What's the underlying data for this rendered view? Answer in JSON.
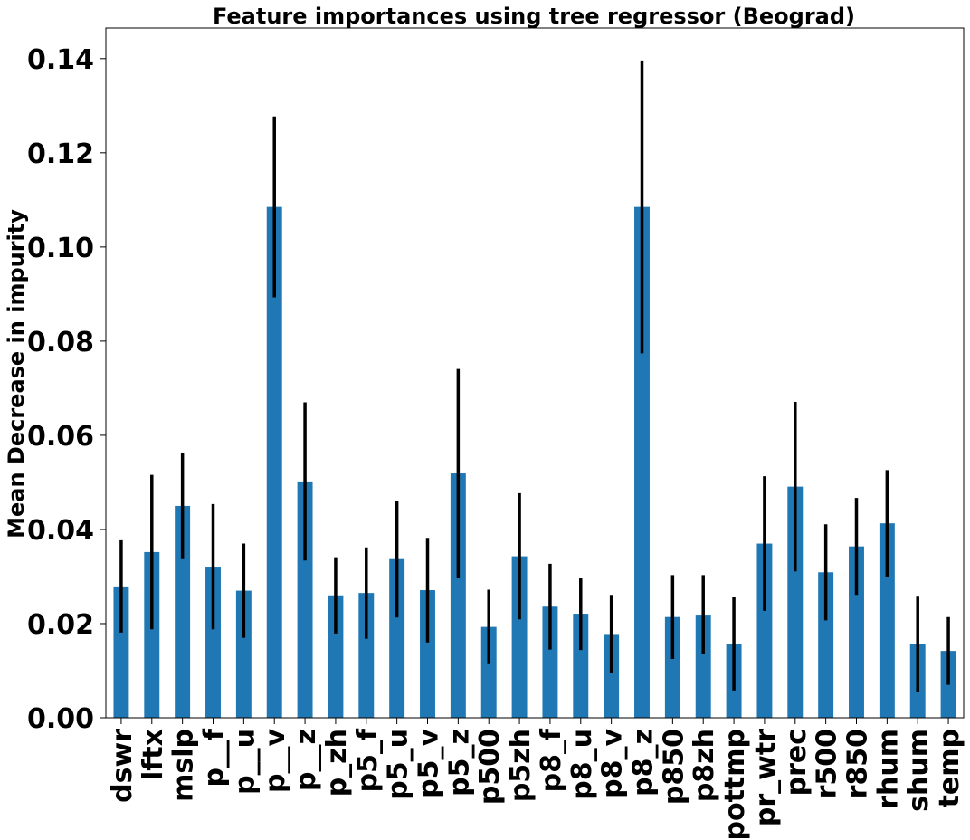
{
  "chart_data": {
    "type": "bar",
    "title": "Feature importances using tree regressor (Beograd)",
    "xlabel": "",
    "ylabel": "Mean Decrease in impurity",
    "ylim": [
      0,
      0.1465
    ],
    "yticks": [
      "0.00",
      "0.02",
      "0.04",
      "0.06",
      "0.08",
      "0.10",
      "0.12",
      "0.14"
    ],
    "grid": false,
    "bar_color": "#1f77b4",
    "error_color": "#000000",
    "categories": [
      "dswr",
      "lftx",
      "mslp",
      "p__f",
      "p__u",
      "p__v",
      "p__z",
      "p_zh",
      "p5_f",
      "p5_u",
      "p5_v",
      "p5_z",
      "p500",
      "p5zh",
      "p8_f",
      "p8_u",
      "p8_v",
      "p8_z",
      "p850",
      "p8zh",
      "pottmp",
      "pr_wtr",
      "prec",
      "r500",
      "r850",
      "rhum",
      "shum",
      "temp"
    ],
    "values": [
      0.0279,
      0.0352,
      0.045,
      0.0321,
      0.027,
      0.1085,
      0.0502,
      0.026,
      0.0265,
      0.0337,
      0.0271,
      0.0519,
      0.0193,
      0.0343,
      0.0236,
      0.0221,
      0.0178,
      0.1085,
      0.0214,
      0.0219,
      0.0157,
      0.037,
      0.0491,
      0.0309,
      0.0364,
      0.0413,
      0.0157,
      0.0142
    ],
    "errors": [
      0.0098,
      0.0164,
      0.0113,
      0.0133,
      0.01,
      0.0192,
      0.0168,
      0.0081,
      0.0097,
      0.0124,
      0.0111,
      0.0222,
      0.0079,
      0.0134,
      0.0091,
      0.0077,
      0.0083,
      0.0311,
      0.0089,
      0.0084,
      0.0099,
      0.0143,
      0.018,
      0.0102,
      0.0103,
      0.0113,
      0.0102,
      0.0072
    ]
  }
}
